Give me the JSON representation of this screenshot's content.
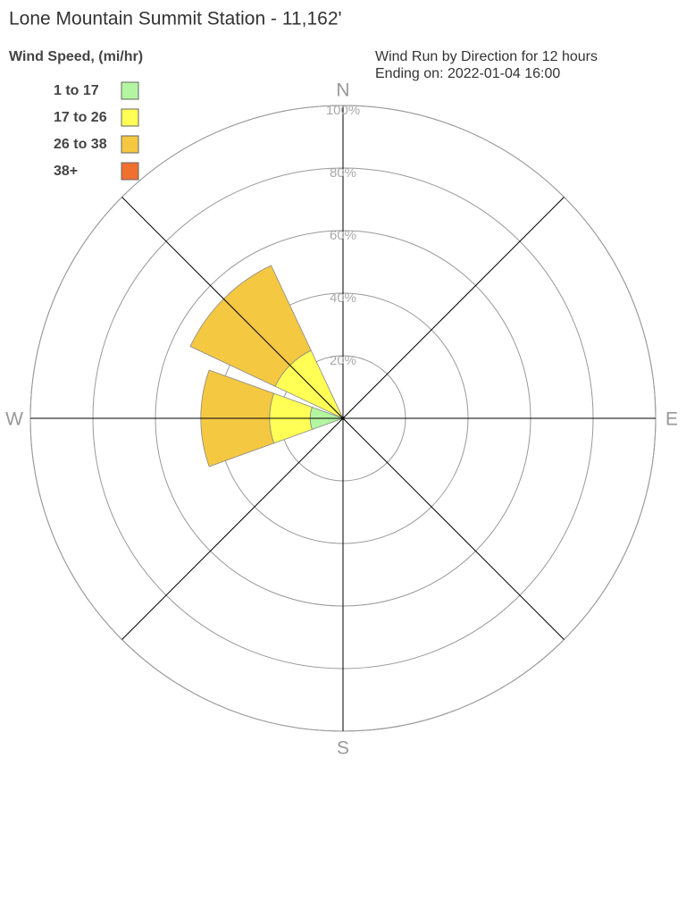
{
  "chart_data": {
    "type": "windrose",
    "title": "Lone Mountain Summit Station - 11,162'",
    "subtitle": [
      "Wind Run by Direction for 12 hours",
      "Ending on: 2022-01-04 16:00"
    ],
    "legend_title": "Wind Speed, (mi/hr)",
    "categories": [
      "N",
      null,
      "E",
      null,
      "S",
      null,
      "W",
      null
    ],
    "series": [
      {
        "name": "1 to 17",
        "color": "#b3f5a0",
        "values": [
          0,
          0,
          0,
          0,
          0,
          0,
          10.5,
          0
        ]
      },
      {
        "name": "17 to 26",
        "color": "#ffff55",
        "values": [
          0,
          0,
          0,
          0,
          0,
          0,
          13,
          24
        ]
      },
      {
        "name": "26 to 38",
        "color": "#f5c842",
        "values": [
          0,
          0,
          0,
          0,
          0,
          0,
          22,
          30
        ]
      },
      {
        "name": "38+",
        "color": "#f07030",
        "values": [
          0,
          0,
          0,
          0,
          0,
          0,
          0,
          0
        ]
      }
    ],
    "rlim": [
      0,
      100
    ],
    "rticks": [
      {
        "value": 20,
        "label": "20%"
      },
      {
        "value": 40,
        "label": "40%"
      },
      {
        "value": 60,
        "label": "60%"
      },
      {
        "value": 80,
        "label": "80%"
      },
      {
        "value": 100,
        "label": "100%"
      }
    ],
    "legend_position": "upper left"
  }
}
